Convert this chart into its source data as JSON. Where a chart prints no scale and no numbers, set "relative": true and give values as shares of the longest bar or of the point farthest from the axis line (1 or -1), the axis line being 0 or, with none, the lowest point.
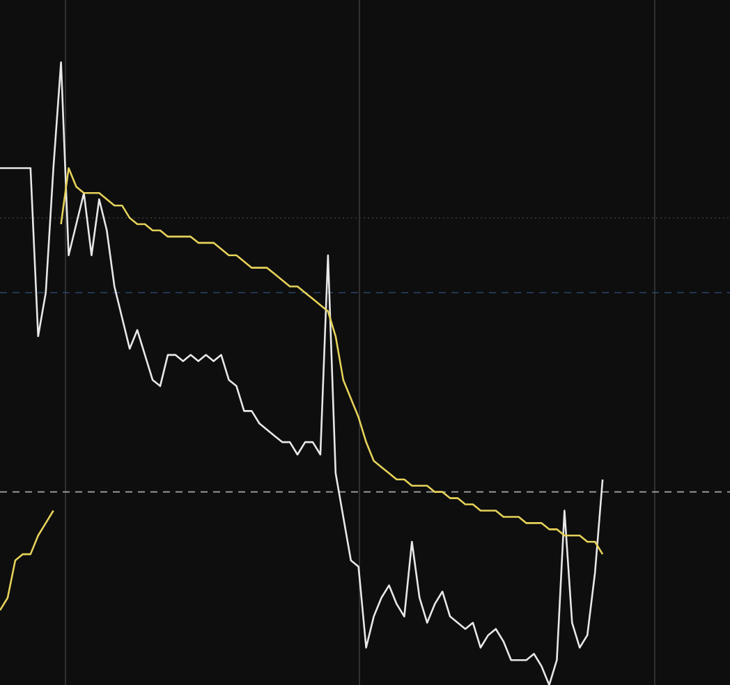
{
  "chart_data": {
    "type": "line",
    "relative": true,
    "categories": [
      null,
      null,
      null,
      null,
      null,
      null,
      null,
      null,
      null,
      null,
      null,
      null,
      null,
      null,
      null,
      null,
      null,
      null,
      null,
      null,
      null,
      null,
      null,
      null,
      null,
      null,
      null,
      null,
      null,
      null,
      null,
      null,
      null,
      null,
      null,
      null,
      null,
      null,
      null,
      null,
      null,
      null,
      null,
      null,
      null,
      null,
      null,
      null,
      null,
      null,
      null,
      null,
      null,
      null,
      null,
      null,
      null,
      null,
      null,
      null,
      null,
      null,
      null,
      null,
      null,
      null,
      null,
      null,
      null,
      null,
      null,
      null,
      null,
      null,
      null,
      null,
      null,
      null,
      null,
      null,
      null,
      null,
      null,
      null,
      null,
      null,
      null,
      null
    ],
    "series": [
      {
        "color": "#e8e8e8",
        "values": [
          0.83,
          0.83,
          0.83,
          0.83,
          0.83,
          0.56,
          0.63,
          0.83,
          1.0,
          0.69,
          0.74,
          0.79,
          0.69,
          0.78,
          0.73,
          0.64,
          0.59,
          0.54,
          0.57,
          0.53,
          0.49,
          0.48,
          0.53,
          0.53,
          0.52,
          0.53,
          0.52,
          0.53,
          0.52,
          0.53,
          0.49,
          0.48,
          0.44,
          0.44,
          0.42,
          0.41,
          0.4,
          0.39,
          0.39,
          0.37,
          0.39,
          0.39,
          0.37,
          0.69,
          0.34,
          0.27,
          0.2,
          0.19,
          0.06,
          0.11,
          0.14,
          0.16,
          0.13,
          0.11,
          0.23,
          0.14,
          0.1,
          0.13,
          0.15,
          0.11,
          0.1,
          0.09,
          0.1,
          0.06,
          0.08,
          0.09,
          0.07,
          0.04,
          0.04,
          0.04,
          0.05,
          0.03,
          0,
          0.04,
          0.28,
          0.1,
          0.06,
          0.08,
          0.18,
          0.33,
          null,
          null,
          null,
          null,
          null,
          null,
          null,
          null
        ]
      },
      {
        "color": "#e6d25a",
        "values": [
          0.12,
          0.14,
          0.2,
          0.21,
          0.21,
          0.24,
          0.26,
          0.28,
          null,
          null,
          null,
          null,
          null,
          null,
          null,
          null,
          null,
          null,
          null,
          null,
          null,
          null,
          null,
          null,
          null,
          null,
          null,
          null,
          null,
          null,
          null,
          null,
          null,
          null,
          null,
          null,
          null,
          null,
          null,
          null,
          null,
          null,
          null,
          null,
          null,
          null,
          null,
          null,
          null,
          null,
          null,
          null,
          null,
          null,
          null,
          null,
          null,
          null,
          null,
          null,
          null,
          null,
          null,
          null,
          null,
          null,
          null,
          null,
          null,
          null,
          null,
          null,
          null,
          null,
          null,
          null,
          null,
          null,
          null,
          null,
          null,
          null,
          null,
          null,
          null,
          null,
          null,
          null
        ]
      },
      {
        "color": "#e6d25a",
        "values": [
          null,
          null,
          null,
          null,
          null,
          null,
          null,
          null,
          0.74,
          0.83,
          0.8,
          0.79,
          0.79,
          0.79,
          0.78,
          0.77,
          0.77,
          0.75,
          0.74,
          0.74,
          0.73,
          0.73,
          0.72,
          0.72,
          0.72,
          0.72,
          0.71,
          0.71,
          0.71,
          0.7,
          0.69,
          0.69,
          0.68,
          0.67,
          0.67,
          0.67,
          0.66,
          0.65,
          0.64,
          0.64,
          0.63,
          0.62,
          0.61,
          0.6,
          0.56,
          0.49,
          0.46,
          0.43,
          0.39,
          0.36,
          0.35,
          0.34,
          0.33,
          0.33,
          0.32,
          0.32,
          0.32,
          0.31,
          0.31,
          0.3,
          0.3,
          0.29,
          0.29,
          0.28,
          0.28,
          0.28,
          0.27,
          0.27,
          0.27,
          0.26,
          0.26,
          0.26,
          0.25,
          0.25,
          0.24,
          0.24,
          0.24,
          0.23,
          0.23,
          0.21,
          null,
          null,
          null,
          null,
          null,
          null,
          null,
          null
        ]
      }
    ],
    "ref_lines": [
      {
        "axis": "y",
        "value": 0.75,
        "color": "#3c3c3c",
        "line_style": "dotted"
      },
      {
        "axis": "y",
        "value": 0.63,
        "color": "#2e4a70",
        "line_style": "dashed"
      },
      {
        "axis": "y",
        "value": 0.31,
        "color": "#a8a8a8",
        "line_style": "dashed"
      }
    ]
  }
}
